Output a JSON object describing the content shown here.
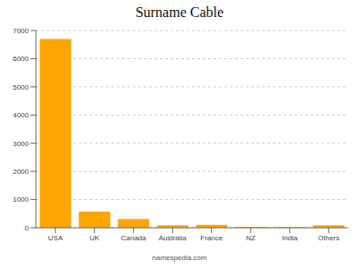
{
  "chart_data": {
    "type": "bar",
    "title": "Surname Cable",
    "categories": [
      "USA",
      "UK",
      "Canada",
      "Australia",
      "France",
      "NZ",
      "India",
      "Others"
    ],
    "values": [
      6700,
      570,
      310,
      90,
      100,
      30,
      20,
      90
    ],
    "color": "#FFA500",
    "ylim": [
      0,
      7000
    ],
    "yticks": [
      0,
      1000,
      2000,
      3000,
      4000,
      5000,
      6000,
      7000
    ],
    "grid": true,
    "annotations": [
      "namespedia.com"
    ]
  }
}
